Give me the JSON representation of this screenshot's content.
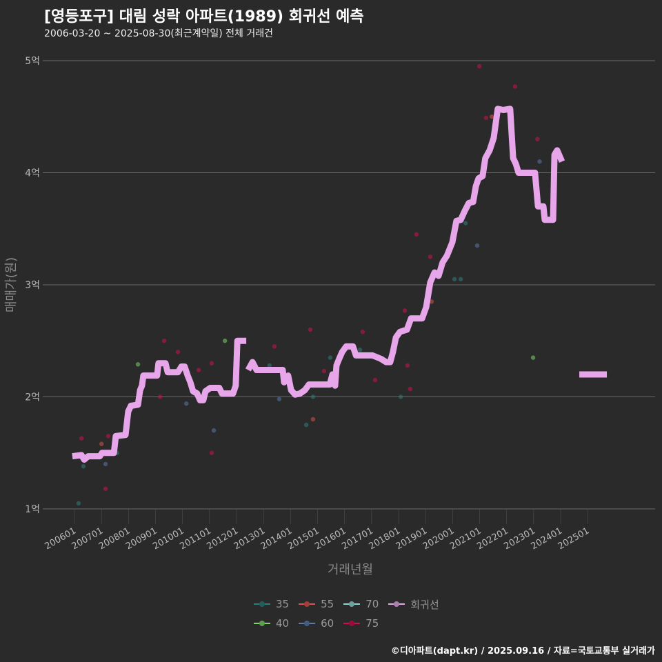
{
  "header": {
    "title": "[영등포구] 대림 성락 아파트(1989) 회귀선 예측",
    "subtitle": "2006-03-20 ~ 2025-08-30(최근계약일) 전체 거래건"
  },
  "caption": "©디아파트(dapt.kr) / 2025.09.16 / 자료=국토교통부 실거래가",
  "chart_data": {
    "type": "scatter+line",
    "xlabel": "거래년월",
    "ylabel": "매매가(원)",
    "xlim": [
      2005.6,
      2027.2
    ],
    "ylim": [
      0.7,
      5.2
    ],
    "x_ticks": [
      {
        "v": 2006,
        "label": "200601"
      },
      {
        "v": 2007,
        "label": "200701"
      },
      {
        "v": 2008,
        "label": "200801"
      },
      {
        "v": 2009,
        "label": "200901"
      },
      {
        "v": 2010,
        "label": "201001"
      },
      {
        "v": 2011,
        "label": "201101"
      },
      {
        "v": 2012,
        "label": "201201"
      },
      {
        "v": 2013,
        "label": "201301"
      },
      {
        "v": 2014,
        "label": "201401"
      },
      {
        "v": 2015,
        "label": "201501"
      },
      {
        "v": 2016,
        "label": "201601"
      },
      {
        "v": 2017,
        "label": "201701"
      },
      {
        "v": 2018,
        "label": "201801"
      },
      {
        "v": 2019,
        "label": "201901"
      },
      {
        "v": 2020,
        "label": "202001"
      },
      {
        "v": 2021,
        "label": "202101"
      },
      {
        "v": 2022,
        "label": "202201"
      },
      {
        "v": 2023,
        "label": "202301"
      },
      {
        "v": 2024,
        "label": "202401"
      },
      {
        "v": 2025,
        "label": "202501"
      }
    ],
    "y_ticks": [
      {
        "v": 1,
        "label": "1억"
      },
      {
        "v": 2,
        "label": "2억"
      },
      {
        "v": 3,
        "label": "3억"
      },
      {
        "v": 4,
        "label": "4억"
      },
      {
        "v": 5,
        "label": "5억"
      }
    ],
    "grid": true,
    "legend_position": "bottom",
    "series_colors": {
      "35": "#2e7d7a",
      "40": "#7ed36a",
      "55": "#d9534f",
      "60": "#5a7aa8",
      "70": "#8fd6d6",
      "75": "#d0104c",
      "회귀선": "#e7a6ea"
    },
    "legend": [
      {
        "name": "35"
      },
      {
        "name": "55"
      },
      {
        "name": "70"
      },
      {
        "name": "회귀선"
      },
      {
        "name": "40"
      },
      {
        "name": "60"
      },
      {
        "name": "75"
      }
    ],
    "points": [
      {
        "x": 2006.15,
        "y": 1.05,
        "s": "35"
      },
      {
        "x": 2006.26,
        "y": 1.63,
        "s": "75"
      },
      {
        "x": 2006.33,
        "y": 1.38,
        "s": "35"
      },
      {
        "x": 2007.0,
        "y": 1.58,
        "s": "55"
      },
      {
        "x": 2007.15,
        "y": 1.18,
        "s": "75"
      },
      {
        "x": 2007.15,
        "y": 1.4,
        "s": "60"
      },
      {
        "x": 2007.25,
        "y": 1.65,
        "s": "75"
      },
      {
        "x": 2007.58,
        "y": 1.5,
        "s": "35"
      },
      {
        "x": 2008.35,
        "y": 2.29,
        "s": "40"
      },
      {
        "x": 2009.17,
        "y": 2.0,
        "s": "75"
      },
      {
        "x": 2009.32,
        "y": 2.5,
        "s": "75"
      },
      {
        "x": 2009.83,
        "y": 2.4,
        "s": "75"
      },
      {
        "x": 2010.14,
        "y": 1.94,
        "s": "60"
      },
      {
        "x": 2010.6,
        "y": 2.24,
        "s": "75"
      },
      {
        "x": 2011.08,
        "y": 2.3,
        "s": "75"
      },
      {
        "x": 2011.08,
        "y": 1.5,
        "s": "75"
      },
      {
        "x": 2011.16,
        "y": 1.7,
        "s": "60"
      },
      {
        "x": 2011.57,
        "y": 2.5,
        "s": "40"
      },
      {
        "x": 2013.22,
        "y": 2.28,
        "s": "35"
      },
      {
        "x": 2013.4,
        "y": 2.45,
        "s": "75"
      },
      {
        "x": 2013.58,
        "y": 1.98,
        "s": "60"
      },
      {
        "x": 2014.58,
        "y": 1.75,
        "s": "35"
      },
      {
        "x": 2014.73,
        "y": 2.6,
        "s": "75"
      },
      {
        "x": 2014.83,
        "y": 1.8,
        "s": "55"
      },
      {
        "x": 2014.83,
        "y": 2.0,
        "s": "35"
      },
      {
        "x": 2015.24,
        "y": 2.23,
        "s": "75"
      },
      {
        "x": 2015.47,
        "y": 2.35,
        "s": "35"
      },
      {
        "x": 2016.57,
        "y": 2.42,
        "s": "35"
      },
      {
        "x": 2016.67,
        "y": 2.58,
        "s": "75"
      },
      {
        "x": 2017.13,
        "y": 2.15,
        "s": "75"
      },
      {
        "x": 2018.08,
        "y": 2.0,
        "s": "35"
      },
      {
        "x": 2018.23,
        "y": 2.77,
        "s": "75"
      },
      {
        "x": 2018.33,
        "y": 2.28,
        "s": "75"
      },
      {
        "x": 2018.43,
        "y": 2.07,
        "s": "75"
      },
      {
        "x": 2018.66,
        "y": 3.45,
        "s": "75"
      },
      {
        "x": 2019.17,
        "y": 3.25,
        "s": "75"
      },
      {
        "x": 2019.22,
        "y": 2.85,
        "s": "55"
      },
      {
        "x": 2020.07,
        "y": 3.05,
        "s": "35"
      },
      {
        "x": 2020.3,
        "y": 3.05,
        "s": "35"
      },
      {
        "x": 2020.48,
        "y": 3.55,
        "s": "35"
      },
      {
        "x": 2020.91,
        "y": 3.35,
        "s": "60"
      },
      {
        "x": 2020.99,
        "y": 4.95,
        "s": "75"
      },
      {
        "x": 2021.24,
        "y": 4.49,
        "s": "75"
      },
      {
        "x": 2021.45,
        "y": 4.5,
        "s": "55"
      },
      {
        "x": 2022.31,
        "y": 4.77,
        "s": "75"
      },
      {
        "x": 2022.98,
        "y": 2.35,
        "s": "40"
      },
      {
        "x": 2023.14,
        "y": 4.3,
        "s": "75"
      },
      {
        "x": 2023.22,
        "y": 4.1,
        "s": "60"
      }
    ],
    "regression": [
      [
        [
          2005.92,
          1.47
        ],
        [
          2006.26,
          1.48
        ],
        [
          2006.36,
          1.44
        ],
        [
          2006.51,
          1.47
        ],
        [
          2006.94,
          1.47
        ],
        [
          2007.02,
          1.5
        ],
        [
          2007.46,
          1.5
        ],
        [
          2007.53,
          1.65
        ],
        [
          2007.89,
          1.66
        ],
        [
          2007.99,
          1.87
        ],
        [
          2008.09,
          1.92
        ],
        [
          2008.35,
          1.93
        ],
        [
          2008.43,
          2.06
        ],
        [
          2008.5,
          2.1
        ],
        [
          2008.55,
          2.19
        ],
        [
          2009.06,
          2.19
        ],
        [
          2009.11,
          2.3
        ],
        [
          2009.37,
          2.3
        ],
        [
          2009.45,
          2.22
        ],
        [
          2009.83,
          2.22
        ],
        [
          2009.96,
          2.27
        ],
        [
          2010.08,
          2.27
        ],
        [
          2010.19,
          2.19
        ],
        [
          2010.29,
          2.13
        ],
        [
          2010.39,
          2.05
        ],
        [
          2010.54,
          2.03
        ],
        [
          2010.65,
          1.97
        ],
        [
          2010.77,
          1.97
        ],
        [
          2010.85,
          2.05
        ],
        [
          2011.03,
          2.08
        ],
        [
          2011.36,
          2.08
        ],
        [
          2011.46,
          2.03
        ],
        [
          2011.87,
          2.03
        ],
        [
          2011.97,
          2.1
        ],
        [
          2012.03,
          2.5
        ],
        [
          2012.36,
          2.5
        ]
      ],
      [
        [
          2012.43,
          2.24
        ],
        [
          2012.59,
          2.31
        ],
        [
          2012.74,
          2.24
        ],
        [
          2013.71,
          2.24
        ],
        [
          2013.76,
          2.13
        ],
        [
          2013.91,
          2.19
        ],
        [
          2014.02,
          2.06
        ],
        [
          2014.17,
          2.02
        ],
        [
          2014.35,
          2.03
        ],
        [
          2014.53,
          2.06
        ],
        [
          2014.68,
          2.11
        ],
        [
          2015.45,
          2.11
        ],
        [
          2015.55,
          2.2
        ],
        [
          2015.65,
          2.1
        ],
        [
          2015.7,
          2.28
        ],
        [
          2015.8,
          2.34
        ],
        [
          2015.91,
          2.4
        ],
        [
          2016.06,
          2.45
        ],
        [
          2016.31,
          2.45
        ],
        [
          2016.42,
          2.37
        ],
        [
          2017.03,
          2.37
        ],
        [
          2017.34,
          2.34
        ],
        [
          2017.54,
          2.31
        ],
        [
          2017.69,
          2.31
        ],
        [
          2017.79,
          2.4
        ],
        [
          2017.9,
          2.53
        ],
        [
          2018.05,
          2.58
        ],
        [
          2018.31,
          2.6
        ],
        [
          2018.46,
          2.7
        ],
        [
          2018.87,
          2.7
        ],
        [
          2019.02,
          2.8
        ],
        [
          2019.17,
          3.02
        ],
        [
          2019.33,
          3.11
        ],
        [
          2019.48,
          3.08
        ],
        [
          2019.63,
          3.2
        ],
        [
          2019.79,
          3.26
        ],
        [
          2019.99,
          3.38
        ],
        [
          2020.14,
          3.57
        ],
        [
          2020.3,
          3.58
        ],
        [
          2020.45,
          3.66
        ],
        [
          2020.6,
          3.73
        ],
        [
          2020.76,
          3.74
        ],
        [
          2020.86,
          3.88
        ],
        [
          2020.96,
          3.95
        ],
        [
          2021.11,
          3.97
        ],
        [
          2021.21,
          4.13
        ],
        [
          2021.37,
          4.2
        ],
        [
          2021.52,
          4.31
        ],
        [
          2021.67,
          4.57
        ],
        [
          2021.88,
          4.56
        ],
        [
          2022.13,
          4.57
        ],
        [
          2022.24,
          4.13
        ],
        [
          2022.34,
          4.08
        ],
        [
          2022.44,
          4.0
        ],
        [
          2023.05,
          4.0
        ],
        [
          2023.16,
          3.7
        ],
        [
          2023.36,
          3.7
        ],
        [
          2023.41,
          3.58
        ],
        [
          2023.72,
          3.58
        ],
        [
          2023.77,
          4.16
        ],
        [
          2023.87,
          4.2
        ],
        [
          2024.05,
          4.1
        ]
      ],
      [
        [
          2024.69,
          2.2
        ],
        [
          2025.71,
          2.2
        ]
      ]
    ]
  }
}
